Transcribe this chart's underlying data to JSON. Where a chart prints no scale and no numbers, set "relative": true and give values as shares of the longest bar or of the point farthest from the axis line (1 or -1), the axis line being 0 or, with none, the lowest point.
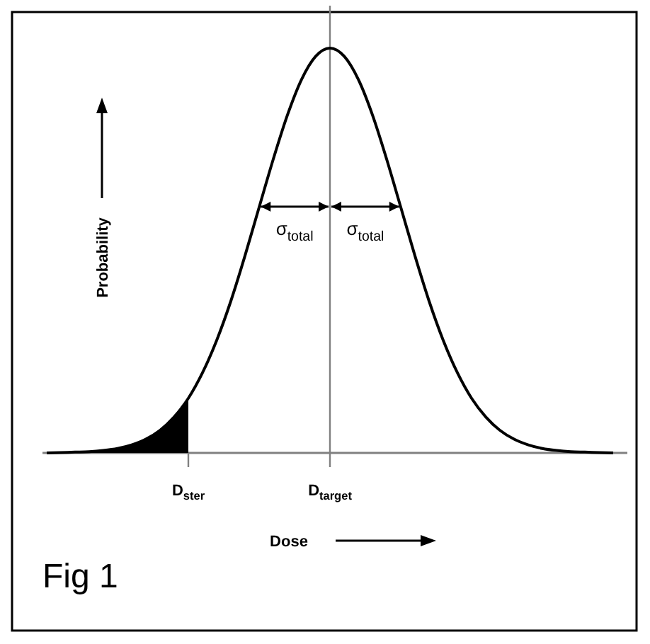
{
  "chart_data": {
    "type": "line",
    "relative": true,
    "xlabel": "Dose",
    "ylabel": "Probability",
    "categories": [
      null,
      null,
      null,
      null,
      null,
      null,
      null,
      null,
      null,
      null,
      "D$_{ster}$",
      null,
      null,
      null,
      null,
      null,
      null,
      null,
      null,
      null,
      "D$_{target}$",
      null,
      null,
      null,
      null,
      null,
      null,
      null,
      null,
      null,
      null,
      null,
      null,
      null,
      null,
      null,
      null,
      null,
      null,
      null,
      null
    ],
    "series": [
      {
        "type": "area",
        "color": "#000000",
        "values": [
          0,
          0.001,
          0.002,
          0.003,
          0.006,
          0.011,
          0.02,
          0.034,
          0.056,
          0.089,
          0.135,
          null,
          null,
          null,
          null,
          null,
          null,
          null,
          null,
          null,
          null,
          null,
          null,
          null,
          null,
          null,
          null,
          null,
          null,
          null,
          null,
          null,
          null,
          null,
          null,
          null,
          null,
          null,
          null,
          null,
          null
        ]
      },
      {
        "color": "#000000",
        "values": [
          0,
          0.001,
          0.002,
          0.003,
          0.006,
          0.011,
          0.02,
          0.034,
          0.056,
          0.089,
          0.135,
          0.198,
          0.278,
          0.375,
          0.487,
          0.607,
          0.726,
          0.835,
          0.923,
          0.98,
          1,
          0.98,
          0.923,
          0.835,
          0.726,
          0.607,
          0.487,
          0.375,
          0.278,
          0.198,
          0.135,
          0.089,
          0.056,
          0.034,
          0.02,
          0.011,
          0.006,
          0.003,
          0.002,
          0.001,
          0
        ]
      }
    ],
    "annotations": [
      "σ$_{total}$",
      "σ$_{total}$",
      "Fig 1"
    ]
  }
}
